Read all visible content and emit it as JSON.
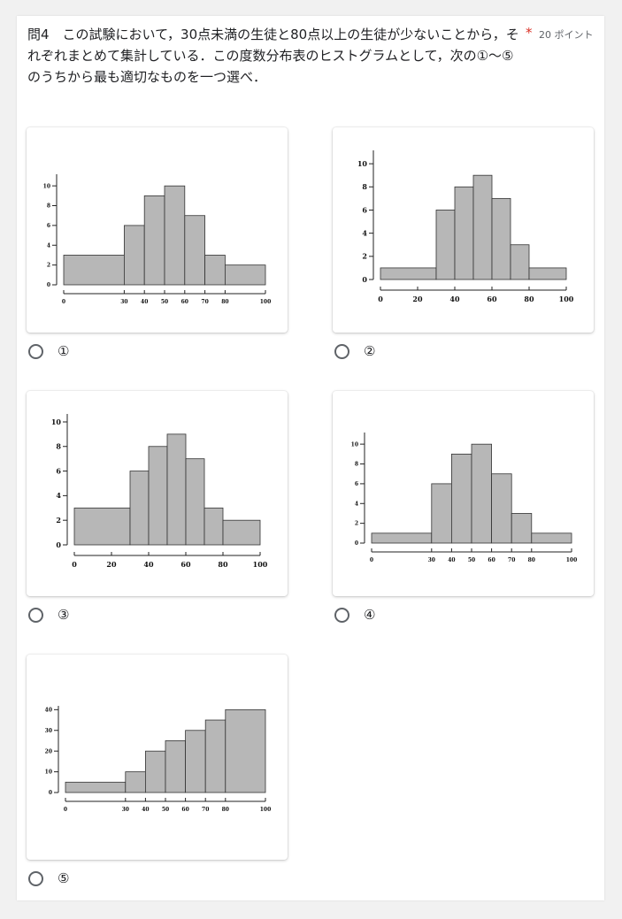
{
  "question": {
    "text": "問4　この試験において，30点未満の生徒と80点以上の生徒が少ないことから，それぞれまとめて集計している．この度数分布表のヒストグラムとして，次の①〜⑤のうちから最も適切なものを一つ選べ．",
    "required_mark": "*",
    "points": "20 ポイント"
  },
  "options": [
    {
      "label": "①"
    },
    {
      "label": "②"
    },
    {
      "label": "③"
    },
    {
      "label": "④"
    },
    {
      "label": "⑤"
    }
  ],
  "chart_data": [
    {
      "type": "bar",
      "bins": [
        [
          0,
          30
        ],
        [
          30,
          40
        ],
        [
          40,
          50
        ],
        [
          50,
          60
        ],
        [
          60,
          70
        ],
        [
          70,
          80
        ],
        [
          80,
          100
        ]
      ],
      "values": [
        3,
        6,
        9,
        10,
        7,
        3,
        2
      ],
      "xticks": [
        0,
        30,
        40,
        50,
        60,
        70,
        80,
        100
      ],
      "yticks": [
        0,
        2,
        4,
        6,
        8,
        10
      ],
      "ylim": [
        0,
        11
      ],
      "xlim": [
        0,
        100
      ]
    },
    {
      "type": "bar",
      "bins": [
        [
          0,
          30
        ],
        [
          30,
          40
        ],
        [
          40,
          50
        ],
        [
          50,
          60
        ],
        [
          60,
          70
        ],
        [
          70,
          80
        ],
        [
          80,
          100
        ]
      ],
      "values": [
        1,
        6,
        8,
        9,
        7,
        3,
        1
      ],
      "xticks": [
        0,
        20,
        40,
        60,
        80,
        100
      ],
      "yticks": [
        0,
        2,
        4,
        6,
        8,
        10
      ],
      "ylim": [
        0,
        11
      ],
      "xlim": [
        0,
        100
      ]
    },
    {
      "type": "bar",
      "bins": [
        [
          0,
          30
        ],
        [
          30,
          40
        ],
        [
          40,
          50
        ],
        [
          50,
          60
        ],
        [
          60,
          70
        ],
        [
          70,
          80
        ],
        [
          80,
          100
        ]
      ],
      "values": [
        3,
        6,
        8,
        9,
        7,
        3,
        2
      ],
      "xticks": [
        0,
        20,
        40,
        60,
        80,
        100
      ],
      "yticks": [
        0,
        2,
        4,
        6,
        8,
        10
      ],
      "ylim": [
        0,
        10.5
      ],
      "xlim": [
        0,
        100
      ]
    },
    {
      "type": "bar",
      "bins": [
        [
          0,
          30
        ],
        [
          30,
          40
        ],
        [
          40,
          50
        ],
        [
          50,
          60
        ],
        [
          60,
          70
        ],
        [
          70,
          80
        ],
        [
          80,
          100
        ]
      ],
      "values": [
        1,
        6,
        9,
        10,
        7,
        3,
        1
      ],
      "xticks": [
        0,
        30,
        40,
        50,
        60,
        70,
        80,
        100
      ],
      "yticks": [
        0,
        2,
        4,
        6,
        8,
        10
      ],
      "ylim": [
        0,
        11
      ],
      "xlim": [
        0,
        100
      ]
    },
    {
      "type": "bar",
      "bins": [
        [
          0,
          30
        ],
        [
          30,
          40
        ],
        [
          40,
          50
        ],
        [
          50,
          60
        ],
        [
          60,
          70
        ],
        [
          70,
          80
        ],
        [
          80,
          100
        ]
      ],
      "values": [
        5,
        10,
        20,
        25,
        30,
        35,
        40
      ],
      "xticks": [
        0,
        30,
        40,
        50,
        60,
        70,
        80,
        100
      ],
      "yticks": [
        0,
        10,
        20,
        30,
        40
      ],
      "ylim": [
        0,
        41
      ],
      "xlim": [
        0,
        100
      ]
    }
  ]
}
